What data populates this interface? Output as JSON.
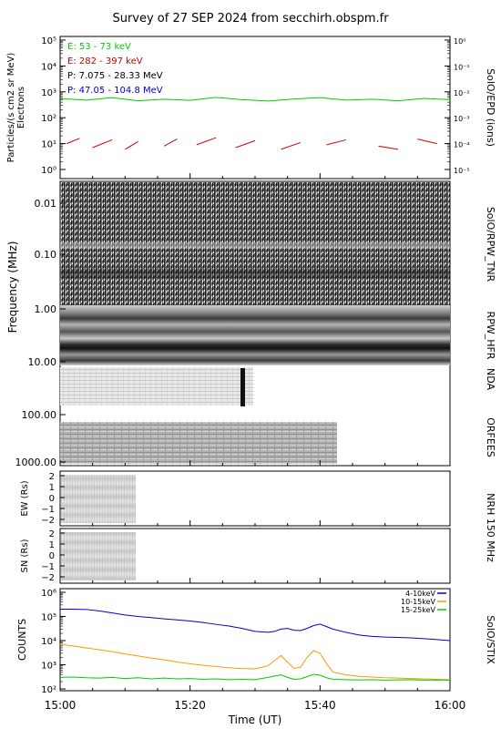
{
  "page": {
    "title": "Survey of 27 SEP 2024 from secchirh.obspm.fr",
    "xlabel": "Time (UT)",
    "xticks": [
      "15:00",
      "15:20",
      "15:40",
      "16:00"
    ]
  },
  "colors": {
    "e_low": "#00cc00",
    "e_high": "#cc0000",
    "p_low": "#000000",
    "p_high": "#0000cc",
    "stix_4_10": "#0000cc",
    "stix_10_15": "#ff9900",
    "stix_15_25": "#00cc00"
  },
  "epd": {
    "ylabel_line1": "Particles/(s cm2 sr MeV)",
    "ylabel_line2": "Electrons",
    "yticks": [
      "10⁰",
      "10¹",
      "10²",
      "10³",
      "10⁴",
      "10⁵"
    ],
    "right_ticks": [
      "10⁻⁵",
      "10⁻⁴",
      "10⁻³",
      "10⁻²",
      "10⁻¹",
      "10⁰"
    ],
    "right_label": "SolO/EPD (ions)",
    "legend": [
      "E: 53 - 73 keV",
      "E: 282 - 397 keV",
      "P: 7.075 - 28.33 MeV",
      "P: 47.05 - 104.8 MeV"
    ]
  },
  "spectro": {
    "ylabel": "Frequency (MHz)",
    "yticks": [
      "0.01",
      "0.10",
      "1.00",
      "10.00",
      "100.00",
      "1000.00"
    ],
    "right_labels": [
      "SolO/RPW_TNR",
      "RPW_HFR",
      "NDA",
      "ORFEES"
    ]
  },
  "nrh": {
    "ew_label": "EW (Rs)",
    "sn_label": "SN (Rs)",
    "yticks": [
      "2",
      "1",
      "0",
      "−1",
      "−2"
    ],
    "right_label": "NRH 150 MHz"
  },
  "stix": {
    "ylabel": "COUNTS",
    "yticks": [
      "10²",
      "10³",
      "10⁴",
      "10⁵",
      "10⁶"
    ],
    "legend": [
      "4-10keV",
      "10-15keV",
      "15-25keV"
    ],
    "right_label": "SolO/STIX"
  },
  "chart_data": [
    {
      "type": "line",
      "title": "Survey of 27 SEP 2024 from secchirh.obspm.fr",
      "xlabel": "",
      "ylabel": "Particles/(s cm2 sr MeV) Electrons",
      "x_range": [
        "15:00",
        "16:00"
      ],
      "ylim": [
        1,
        100000
      ],
      "y_scale": "log",
      "series": [
        {
          "name": "E: 53 - 73 keV",
          "x": [
            0,
            4,
            8,
            12,
            16,
            20,
            24,
            28,
            32,
            36,
            40,
            44,
            48,
            52,
            56,
            60
          ],
          "values": [
            550,
            480,
            600,
            450,
            520,
            470,
            610,
            500,
            440,
            530,
            600,
            480,
            520,
            450,
            560,
            500
          ]
        },
        {
          "name": "E: 282 - 397 keV",
          "x": [
            1,
            3,
            5,
            8,
            10,
            12,
            16,
            18,
            21,
            24,
            27,
            30,
            34,
            37,
            41,
            44,
            49,
            52,
            55,
            58
          ],
          "values": [
            10,
            16,
            7,
            14,
            6,
            12,
            8,
            15,
            9,
            17,
            7,
            13,
            6,
            11,
            9,
            14,
            8,
            6,
            15,
            10
          ]
        }
      ]
    },
    {
      "type": "heatmap",
      "title": "",
      "xlabel": "",
      "ylabel": "Frequency (MHz)",
      "y_scale": "log",
      "ylim": [
        0.005,
        1000
      ],
      "x_range": [
        "15:00",
        "16:00"
      ],
      "series": [
        {
          "name": "SolO/RPW_TNR",
          "freq_range_mhz": [
            0.005,
            1.0
          ],
          "time_range": [
            "15:00",
            "16:00"
          ]
        },
        {
          "name": "RPW_HFR",
          "freq_range_mhz": [
            1.0,
            10.0
          ],
          "time_range": [
            "15:00",
            "16:00"
          ]
        },
        {
          "name": "NDA",
          "freq_range_mhz": [
            10.0,
            80.0
          ],
          "time_range": [
            "15:00",
            "15:30"
          ]
        },
        {
          "name": "ORFEES",
          "freq_range_mhz": [
            140.0,
            1000.0
          ],
          "time_range": [
            "15:00",
            "15:42"
          ]
        }
      ]
    },
    {
      "type": "heatmap",
      "title": "",
      "xlabel": "",
      "ylabel": "EW (Rs)",
      "ylim": [
        -2.5,
        2.5
      ],
      "series": [
        {
          "name": "NRH 150 MHz",
          "time_range": [
            "15:00",
            "15:11"
          ]
        }
      ]
    },
    {
      "type": "heatmap",
      "title": "",
      "xlabel": "",
      "ylabel": "SN (Rs)",
      "ylim": [
        -2.5,
        2.5
      ],
      "series": [
        {
          "name": "NRH 150 MHz",
          "time_range": [
            "15:00",
            "15:11"
          ]
        }
      ]
    },
    {
      "type": "line",
      "title": "",
      "xlabel": "Time (UT)",
      "ylabel": "COUNTS",
      "y_scale": "log",
      "ylim": [
        100,
        1000000
      ],
      "x": [
        0,
        2,
        4,
        6,
        8,
        10,
        12,
        14,
        16,
        18,
        20,
        22,
        24,
        26,
        28,
        30,
        32,
        33,
        34,
        35,
        36,
        37,
        38,
        39,
        40,
        41,
        42,
        44,
        46,
        48,
        50,
        52,
        54,
        56,
        58,
        60
      ],
      "series": [
        {
          "name": "4-10keV",
          "values": [
            200000,
            200000,
            195000,
            170000,
            140000,
            115000,
            100000,
            90000,
            80000,
            72000,
            65000,
            56000,
            47000,
            40000,
            32000,
            24000,
            22000,
            24000,
            30000,
            32000,
            27000,
            26000,
            32000,
            42000,
            48000,
            38000,
            30000,
            22000,
            17000,
            15000,
            14000,
            13500,
            13000,
            12000,
            11000,
            10000
          ]
        },
        {
          "name": "10-15keV",
          "values": [
            7000,
            6000,
            5000,
            4200,
            3500,
            2800,
            2300,
            1900,
            1600,
            1300,
            1100,
            950,
            850,
            750,
            700,
            680,
            900,
            1500,
            2400,
            1300,
            700,
            800,
            2000,
            3800,
            3000,
            1100,
            500,
            380,
            330,
            310,
            290,
            280,
            270,
            260,
            250,
            240
          ]
        },
        {
          "name": "15-25keV",
          "values": [
            300,
            310,
            290,
            280,
            300,
            270,
            290,
            260,
            280,
            260,
            270,
            250,
            260,
            240,
            250,
            240,
            300,
            340,
            380,
            300,
            250,
            260,
            320,
            400,
            370,
            290,
            250,
            240,
            235,
            240,
            230,
            235,
            240,
            230,
            235,
            230
          ]
        }
      ]
    }
  ]
}
